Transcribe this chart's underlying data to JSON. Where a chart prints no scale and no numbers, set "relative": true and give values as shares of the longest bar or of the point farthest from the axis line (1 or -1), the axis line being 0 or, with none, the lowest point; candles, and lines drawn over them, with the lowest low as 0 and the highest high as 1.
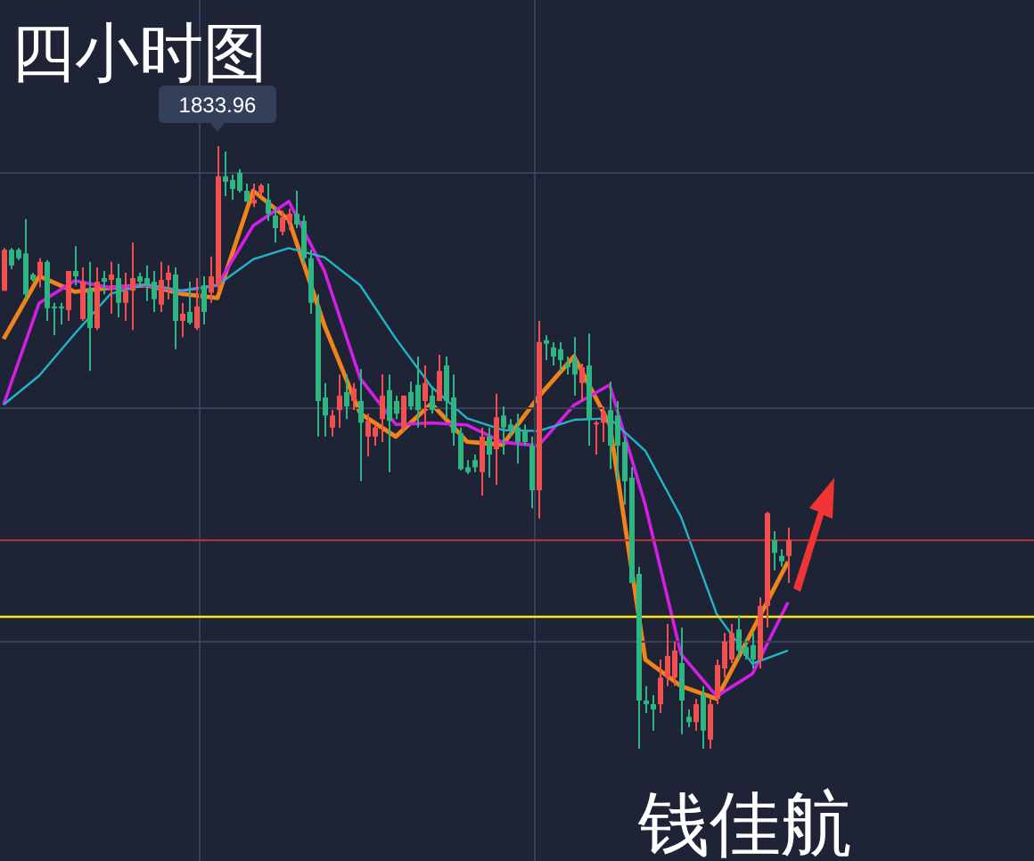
{
  "chart_data": [
    {
      "type": "candlestick",
      "title": "四小时图",
      "relative": true,
      "categories": [
        null,
        null,
        null,
        null,
        null,
        null,
        null,
        null,
        null,
        null,
        null,
        null,
        null,
        null,
        null,
        null,
        null,
        null,
        null,
        null,
        null,
        null,
        null,
        null,
        null,
        null,
        null,
        null,
        null,
        null,
        null,
        null,
        null,
        null,
        null,
        null,
        null,
        null,
        null,
        null,
        null,
        null,
        null,
        null,
        null,
        null,
        null,
        null,
        null,
        null,
        null,
        null,
        null,
        null,
        null,
        null,
        null,
        null,
        null,
        null,
        null,
        null,
        null,
        null,
        null,
        null,
        null,
        null,
        null,
        null,
        null,
        null,
        null,
        null,
        null,
        null,
        null,
        null,
        null,
        null,
        null,
        null,
        null,
        null,
        null,
        null,
        null,
        null,
        null,
        null,
        null,
        null,
        null,
        null,
        null,
        null,
        null,
        null,
        null,
        null,
        null,
        null,
        null,
        null,
        null,
        null,
        null,
        null,
        null,
        null,
        null
      ],
      "ohlc": [
        [
          0.76,
          0.831,
          0.76,
          0.828
        ],
        [
          0.828,
          0.831,
          0.796,
          0.802
        ],
        [
          0.828,
          0.831,
          0.811,
          0.814
        ],
        [
          0.822,
          0.879,
          0.746,
          0.754
        ],
        [
          0.787,
          0.79,
          0.775,
          0.778
        ],
        [
          0.784,
          0.814,
          0.766,
          0.808
        ],
        [
          0.808,
          0.811,
          0.71,
          0.731
        ],
        [
          0.734,
          0.74,
          0.686,
          0.731
        ],
        [
          0.734,
          0.74,
          0.704,
          0.731
        ],
        [
          0.728,
          0.793,
          0.71,
          0.793
        ],
        [
          0.793,
          0.834,
          0.769,
          0.784
        ],
        [
          0.713,
          0.799,
          0.71,
          0.775
        ],
        [
          0.763,
          0.808,
          0.627,
          0.698
        ],
        [
          0.698,
          0.799,
          0.695,
          0.775
        ],
        [
          0.781,
          0.793,
          0.754,
          0.775
        ],
        [
          0.778,
          0.808,
          0.722,
          0.787
        ],
        [
          0.781,
          0.805,
          0.716,
          0.74
        ],
        [
          0.74,
          0.79,
          0.71,
          0.76
        ],
        [
          0.76,
          0.84,
          0.695,
          0.781
        ],
        [
          0.784,
          0.79,
          0.769,
          0.775
        ],
        [
          0.781,
          0.802,
          0.743,
          0.769
        ],
        [
          0.775,
          0.793,
          0.725,
          0.746
        ],
        [
          0.737,
          0.808,
          0.725,
          0.778
        ],
        [
          0.778,
          0.802,
          0.746,
          0.79
        ],
        [
          0.787,
          0.799,
          0.663,
          0.71
        ],
        [
          0.71,
          0.74,
          0.683,
          0.722
        ],
        [
          0.725,
          0.775,
          0.704,
          0.707
        ],
        [
          0.698,
          0.781,
          0.695,
          0.734
        ],
        [
          0.769,
          0.784,
          0.704,
          0.725
        ],
        [
          0.757,
          0.817,
          0.74,
          0.784
        ],
        [
          0.769,
          1.0,
          0.76,
          0.95
        ],
        [
          0.95,
          0.991,
          0.917,
          0.941
        ],
        [
          0.944,
          0.953,
          0.911,
          0.929
        ],
        [
          0.956,
          0.962,
          0.923,
          0.926
        ],
        [
          0.926,
          0.938,
          0.908,
          0.908
        ],
        [
          0.905,
          0.938,
          0.899,
          0.911
        ],
        [
          0.923,
          0.938,
          0.917,
          0.935
        ],
        [
          0.911,
          0.938,
          0.876,
          0.888
        ],
        [
          0.885,
          0.899,
          0.84,
          0.864
        ],
        [
          0.858,
          0.893,
          0.852,
          0.882
        ],
        [
          0.876,
          0.896,
          0.861,
          0.888
        ],
        [
          0.888,
          0.926,
          0.864,
          0.87
        ],
        [
          0.876,
          0.885,
          0.805,
          0.814
        ],
        [
          0.814,
          0.828,
          0.722,
          0.74
        ],
        [
          0.734,
          0.754,
          0.518,
          0.577
        ],
        [
          0.583,
          0.607,
          0.518,
          0.553
        ],
        [
          0.533,
          0.562,
          0.518,
          0.553
        ],
        [
          0.562,
          0.621,
          0.533,
          0.586
        ],
        [
          0.592,
          0.621,
          0.547,
          0.568
        ],
        [
          0.577,
          0.607,
          0.562,
          0.598
        ],
        [
          0.577,
          0.63,
          0.444,
          0.541
        ],
        [
          0.518,
          0.556,
          0.485,
          0.544
        ],
        [
          0.518,
          0.538,
          0.503,
          0.533
        ],
        [
          0.547,
          0.621,
          0.509,
          0.586
        ],
        [
          0.595,
          0.621,
          0.459,
          0.544
        ],
        [
          0.577,
          0.586,
          0.547,
          0.556
        ],
        [
          0.533,
          0.586,
          0.527,
          0.586
        ],
        [
          0.592,
          0.609,
          0.562,
          0.568
        ],
        [
          0.604,
          0.651,
          0.533,
          0.562
        ],
        [
          0.577,
          0.636,
          0.533,
          0.607
        ],
        [
          0.586,
          0.598,
          0.556,
          0.562
        ],
        [
          0.577,
          0.654,
          0.577,
          0.627
        ],
        [
          0.636,
          0.651,
          0.547,
          0.577
        ],
        [
          0.583,
          0.621,
          0.503,
          0.524
        ],
        [
          0.524,
          0.533,
          0.462,
          0.464
        ],
        [
          0.467,
          0.479,
          0.456,
          0.459
        ],
        [
          0.479,
          0.488,
          0.459,
          0.467
        ],
        [
          0.459,
          0.533,
          0.42,
          0.518
        ],
        [
          0.518,
          0.533,
          0.45,
          0.488
        ],
        [
          0.497,
          0.589,
          0.438,
          0.55
        ],
        [
          0.553,
          0.568,
          0.488,
          0.533
        ],
        [
          0.538,
          0.547,
          0.518,
          0.53
        ],
        [
          0.533,
          0.556,
          0.473,
          0.509
        ],
        [
          0.527,
          0.538,
          0.503,
          0.509
        ],
        [
          0.503,
          0.518,
          0.399,
          0.429
        ],
        [
          0.429,
          0.71,
          0.382,
          0.675
        ],
        [
          0.678,
          0.686,
          0.645,
          0.672
        ],
        [
          0.666,
          0.675,
          0.636,
          0.651
        ],
        [
          0.663,
          0.675,
          0.627,
          0.645
        ],
        [
          0.639,
          0.651,
          0.621,
          0.633
        ],
        [
          0.648,
          0.683,
          0.586,
          0.621
        ],
        [
          0.607,
          0.639,
          0.577,
          0.633
        ],
        [
          0.636,
          0.689,
          0.503,
          0.547
        ],
        [
          0.538,
          0.544,
          0.488,
          0.541
        ],
        [
          0.541,
          0.568,
          0.509,
          0.559
        ],
        [
          0.562,
          0.609,
          0.464,
          0.503
        ],
        [
          0.553,
          0.577,
          0.444,
          0.503
        ],
        [
          0.509,
          0.518,
          0.405,
          0.444
        ],
        [
          0.45,
          0.467,
          0.275,
          0.275
        ],
        [
          0.29,
          0.302,
          0.0,
          0.08
        ],
        [
          0.08,
          0.104,
          0.059,
          0.074
        ],
        [
          0.074,
          0.089,
          0.03,
          0.065
        ],
        [
          0.074,
          0.148,
          0.059,
          0.118
        ],
        [
          0.118,
          0.207,
          0.104,
          0.154
        ],
        [
          0.118,
          0.178,
          0.104,
          0.163
        ],
        [
          0.142,
          0.201,
          0.024,
          0.08
        ],
        [
          0.053,
          0.065,
          0.036,
          0.044
        ],
        [
          0.044,
          0.083,
          0.03,
          0.074
        ],
        [
          0.089,
          0.104,
          0.0,
          0.03
        ],
        [
          0.015,
          0.083,
          0.0,
          0.074
        ],
        [
          0.083,
          0.148,
          0.074,
          0.139
        ],
        [
          0.133,
          0.192,
          0.118,
          0.178
        ],
        [
          0.148,
          0.207,
          0.142,
          0.192
        ],
        [
          0.198,
          0.222,
          0.148,
          0.163
        ],
        [
          0.169,
          0.183,
          0.148,
          0.154
        ],
        [
          0.172,
          0.192,
          0.133,
          0.148
        ],
        [
          0.148,
          0.251,
          0.133,
          0.237
        ],
        [
          0.237,
          0.393,
          0.201,
          0.391
        ],
        [
          0.346,
          0.361,
          0.296,
          0.325
        ],
        [
          0.32,
          0.331,
          0.302,
          0.311
        ],
        [
          0.32,
          0.367,
          0.275,
          0.346
        ]
      ],
      "colors": [
        "#f0514f",
        "#2fb482",
        "#2fb482",
        "#2fb482",
        "#2fb482",
        "#f0514f",
        "#2fb482",
        "#2fb482",
        "#2fb482",
        "#f0514f",
        "#2fb482",
        "#f0514f",
        "#2fb482",
        "#f0514f",
        "#2fb482",
        "#f0514f",
        "#2fb482",
        "#f0514f",
        "#f0514f",
        "#2fb482",
        "#2fb482",
        "#2fb482",
        "#f0514f",
        "#f0514f",
        "#2fb482",
        "#f0514f",
        "#2fb482",
        "#f0514f",
        "#2fb482",
        "#f0514f",
        "#f0514f",
        "#2fb482",
        "#2fb482",
        "#2fb482",
        "#2fb482",
        "#f0514f",
        "#f0514f",
        "#2fb482",
        "#2fb482",
        "#f0514f",
        "#f0514f",
        "#2fb482",
        "#2fb482",
        "#2fb482",
        "#2fb482",
        "#2fb482",
        "#f0514f",
        "#f0514f",
        "#2fb482",
        "#f0514f",
        "#2fb482",
        "#f0514f",
        "#f0514f",
        "#f0514f",
        "#2fb482",
        "#2fb482",
        "#f0514f",
        "#2fb482",
        "#2fb482",
        "#f0514f",
        "#2fb482",
        "#f0514f",
        "#2fb482",
        "#2fb482",
        "#2fb482",
        "#2fb482",
        "#2fb482",
        "#f0514f",
        "#2fb482",
        "#f0514f",
        "#2fb482",
        "#2fb482",
        "#2fb482",
        "#2fb482",
        "#2fb482",
        "#f0514f",
        "#2fb482",
        "#2fb482",
        "#2fb482",
        "#2fb482",
        "#2fb482",
        "#f0514f",
        "#2fb482",
        "#f0514f",
        "#f0514f",
        "#2fb482",
        "#2fb482",
        "#2fb482",
        "#2fb482",
        "#2fb482",
        "#2fb482",
        "#2fb482",
        "#f0514f",
        "#f0514f",
        "#f0514f",
        "#2fb482",
        "#2fb482",
        "#f0514f",
        "#2fb482",
        "#f0514f",
        "#f0514f",
        "#f0514f",
        "#f0514f",
        "#2fb482",
        "#2fb482",
        "#2fb482",
        "#f0514f",
        "#f0514f",
        "#2fb482",
        "#2fb482",
        "#f0514f"
      ],
      "ref_lines": [
        {
          "axis": "y",
          "value": 0.346,
          "color": "#a8333a"
        },
        {
          "axis": "y",
          "value": 0.219,
          "color": "#ffe81a"
        }
      ],
      "grid": true,
      "annotations": [
        {
          "text": "1833.96",
          "y": 1.0
        },
        "钱佳航"
      ]
    },
    {
      "type": "line",
      "relative": true,
      "categories": [
        null,
        null,
        null,
        null,
        null,
        null,
        null,
        null,
        null,
        null,
        null,
        null,
        null,
        null,
        null,
        null,
        null,
        null,
        null,
        null,
        null,
        null,
        null
      ],
      "series": [
        {
          "color": "#f08419",
          "values": [
            0.708,
            0.832,
            0.801,
            0.809,
            0.814,
            0.797,
            0.789,
            1.0,
            0.943,
            0.735,
            0.562,
            0.516,
            0.581,
            0.506,
            0.5,
            0.594,
            0.674,
            0.54,
            0.077,
            0.025,
            0.0,
            0.134,
            0.27
          ]
        },
        {
          "color": "#d41ee6",
          "values": [
            0.579,
            0.779,
            0.823,
            0.809,
            0.814,
            0.803,
            0.814,
            0.931,
            0.979,
            0.842,
            0.631,
            0.54,
            0.543,
            0.539,
            0.505,
            0.498,
            0.578,
            0.618,
            0.381,
            0.088,
            0.005,
            0.049,
            0.19
          ]
        },
        {
          "color": "#22b5c9",
          "values": [
            0.579,
            0.636,
            0.719,
            0.797,
            0.816,
            0.803,
            0.814,
            0.865,
            0.887,
            0.869,
            0.814,
            0.709,
            0.614,
            0.552,
            0.529,
            0.527,
            0.549,
            0.552,
            0.488,
            0.358,
            0.167,
            0.069,
            0.095
          ]
        }
      ]
    }
  ]
}
